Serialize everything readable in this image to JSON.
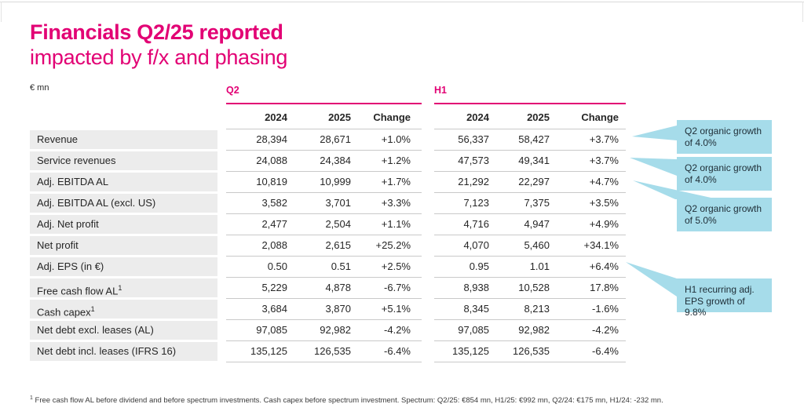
{
  "slide": {
    "title": "Financials Q2/25 reported",
    "subtitle": "impacted by f/x and phasing",
    "unit_label": "€ mn",
    "footnote_marker": "1",
    "footnote": " Free cash flow AL before dividend and before spectrum investments. Cash capex before spectrum investment. Spectrum: Q2/25: €854 mn, H1/25: €992 mn, Q2/24: €175 mn, H1/24: -232 mn."
  },
  "colors": {
    "brand_magenta": "#E20074",
    "callout_blue": "#A6DCEA",
    "row_label_bg": "#ECECEC",
    "separator": "#C9C9C9",
    "text": "#262626"
  },
  "table": {
    "groups": [
      {
        "label": "Q2"
      },
      {
        "label": "H1"
      }
    ],
    "columns": [
      "2024",
      "2025",
      "Change"
    ],
    "rows": [
      {
        "label": "Revenue",
        "sup": "",
        "q2": [
          "28,394",
          "28,671",
          "+1.0%"
        ],
        "h1": [
          "56,337",
          "58,427",
          "+3.7%"
        ]
      },
      {
        "label": "Service revenues",
        "sup": "",
        "q2": [
          "24,088",
          "24,384",
          "+1.2%"
        ],
        "h1": [
          "47,573",
          "49,341",
          "+3.7%"
        ]
      },
      {
        "label": "Adj. EBITDA AL",
        "sup": "",
        "q2": [
          "10,819",
          "10,999",
          "+1.7%"
        ],
        "h1": [
          "21,292",
          "22,297",
          "+4.7%"
        ]
      },
      {
        "label": "Adj. EBITDA AL (excl. US)",
        "sup": "",
        "q2": [
          "3,582",
          "3,701",
          "+3.3%"
        ],
        "h1": [
          "7,123",
          "7,375",
          "+3.5%"
        ]
      },
      {
        "label": "Adj. Net profit",
        "sup": "",
        "q2": [
          "2,477",
          "2,504",
          "+1.1%"
        ],
        "h1": [
          "4,716",
          "4,947",
          "+4.9%"
        ]
      },
      {
        "label": "Net profit",
        "sup": "",
        "q2": [
          "2,088",
          "2,615",
          "+25.2%"
        ],
        "h1": [
          "4,070",
          "5,460",
          "+34.1%"
        ]
      },
      {
        "label": "Adj. EPS (in €)",
        "sup": "",
        "q2": [
          "0.50",
          "0.51",
          "+2.5%"
        ],
        "h1": [
          "0.95",
          "1.01",
          "+6.4%"
        ]
      },
      {
        "label": "Free cash flow AL",
        "sup": "1",
        "q2": [
          "5,229",
          "4,878",
          "-6.7%"
        ],
        "h1": [
          "8,938",
          "10,528",
          "17.8%"
        ]
      },
      {
        "label": "Cash capex",
        "sup": "1",
        "q2": [
          "3,684",
          "3,870",
          "+5.1%"
        ],
        "h1": [
          "8,345",
          "8,213",
          "-1.6%"
        ]
      },
      {
        "label": "Net debt excl. leases (AL)",
        "sup": "",
        "q2": [
          "97,085",
          "92,982",
          "-4.2%"
        ],
        "h1": [
          "97,085",
          "92,982",
          "-4.2%"
        ]
      },
      {
        "label": "Net debt incl. leases (IFRS 16)",
        "sup": "",
        "q2": [
          "135,125",
          "126,535",
          "-6.4%"
        ],
        "h1": [
          "135,125",
          "126,535",
          "-6.4%"
        ]
      }
    ]
  },
  "callouts": [
    {
      "text": "Q2 organic growth of 4.0%"
    },
    {
      "text": "Q2 organic growth of 4.0%"
    },
    {
      "text": "Q2 organic growth of 5.0%"
    },
    {
      "text": "H1 recurring adj. EPS growth of 9.8%"
    }
  ]
}
